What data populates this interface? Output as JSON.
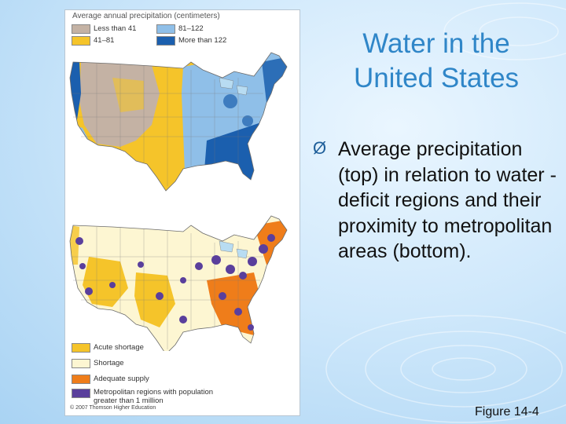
{
  "slide": {
    "title_line1": "Water in the",
    "title_line2": "United States",
    "bullet_marker": "Ø",
    "bullet_text": "Average precipitation (top) in relation to water -deficit regions and their proximity to metropolitan areas (bottom).",
    "figure_label": "Figure 14-4"
  },
  "map_top": {
    "legend_title": "Average annual precipitation (centimeters)",
    "legend": [
      {
        "label": "Less than 41",
        "color": "#c4b2a4"
      },
      {
        "label": "41–81",
        "color": "#f5c42a"
      },
      {
        "label": "81–122",
        "color": "#8fbfe8"
      },
      {
        "label": "More than 122",
        "color": "#1b5fae"
      }
    ]
  },
  "map_bottom": {
    "legend": [
      {
        "label": "Acute shortage",
        "color": "#f5c42a"
      },
      {
        "label": "Shortage",
        "color": "#fdf6d2"
      },
      {
        "label": "Adequate supply",
        "color": "#ef7d1a"
      },
      {
        "label": "Metropolitan regions with population greater than 1 million",
        "color": "#5a3f9c"
      }
    ],
    "copyright": "© 2007 Thomson Higher Education"
  },
  "colors": {
    "title": "#2f86c8",
    "lake": "#b8dcf2"
  }
}
